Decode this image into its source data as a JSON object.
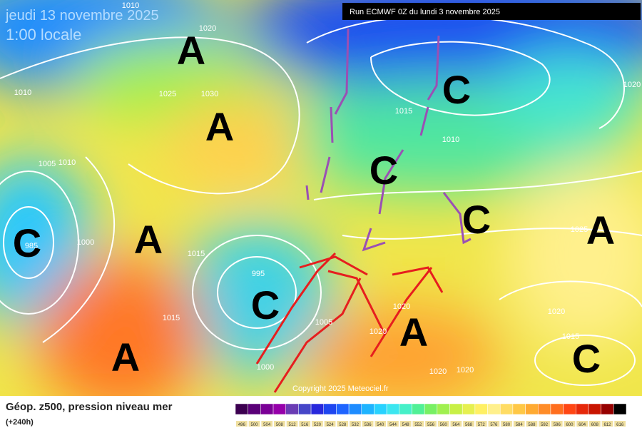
{
  "header": {
    "date": "jeudi 13 novembre 2025",
    "time": "1:00 locale",
    "run": "Run ECMWF 0Z du lundi 3 novembre 2025"
  },
  "centers": [
    "A",
    "A",
    "A",
    "A",
    "C",
    "C",
    "C",
    "C",
    "C",
    "A",
    "A",
    "C"
  ],
  "isobars": [
    1010,
    1020,
    1025,
    1030,
    1010,
    1005,
    1010,
    985,
    1000,
    1015,
    995,
    1015,
    1015,
    1010,
    1020,
    1020,
    1020,
    1020,
    1000,
    1025,
    1015,
    1020,
    1020,
    1005
  ],
  "copyright": "Copyright 2025 Meteociel.fr",
  "footer": {
    "title": "Géop. z500, pression niveau mer",
    "lead": "(+240h)"
  },
  "legend": {
    "labels": [
      496,
      500,
      504,
      508,
      512,
      516,
      520,
      524,
      528,
      532,
      536,
      540,
      544,
      548,
      552,
      556,
      560,
      564,
      568,
      572,
      576,
      580,
      584,
      588,
      592,
      596,
      600,
      604,
      608,
      612,
      616
    ],
    "colors": [
      "#3c0050",
      "#5a0078",
      "#7a0096",
      "#9600aa",
      "#6a3cb4",
      "#4646c8",
      "#2828dc",
      "#1e46f0",
      "#1e64ff",
      "#1e8cff",
      "#1eb4ff",
      "#28d2ff",
      "#3ce6f0",
      "#46f0c8",
      "#50f096",
      "#78f064",
      "#a0f050",
      "#c8f046",
      "#e6f050",
      "#fff064",
      "#fff08c",
      "#ffdc64",
      "#ffc846",
      "#ffaa32",
      "#ff8c28",
      "#ff6e1e",
      "#ff4614",
      "#e6280a",
      "#c81400",
      "#960000",
      "#000000"
    ]
  }
}
